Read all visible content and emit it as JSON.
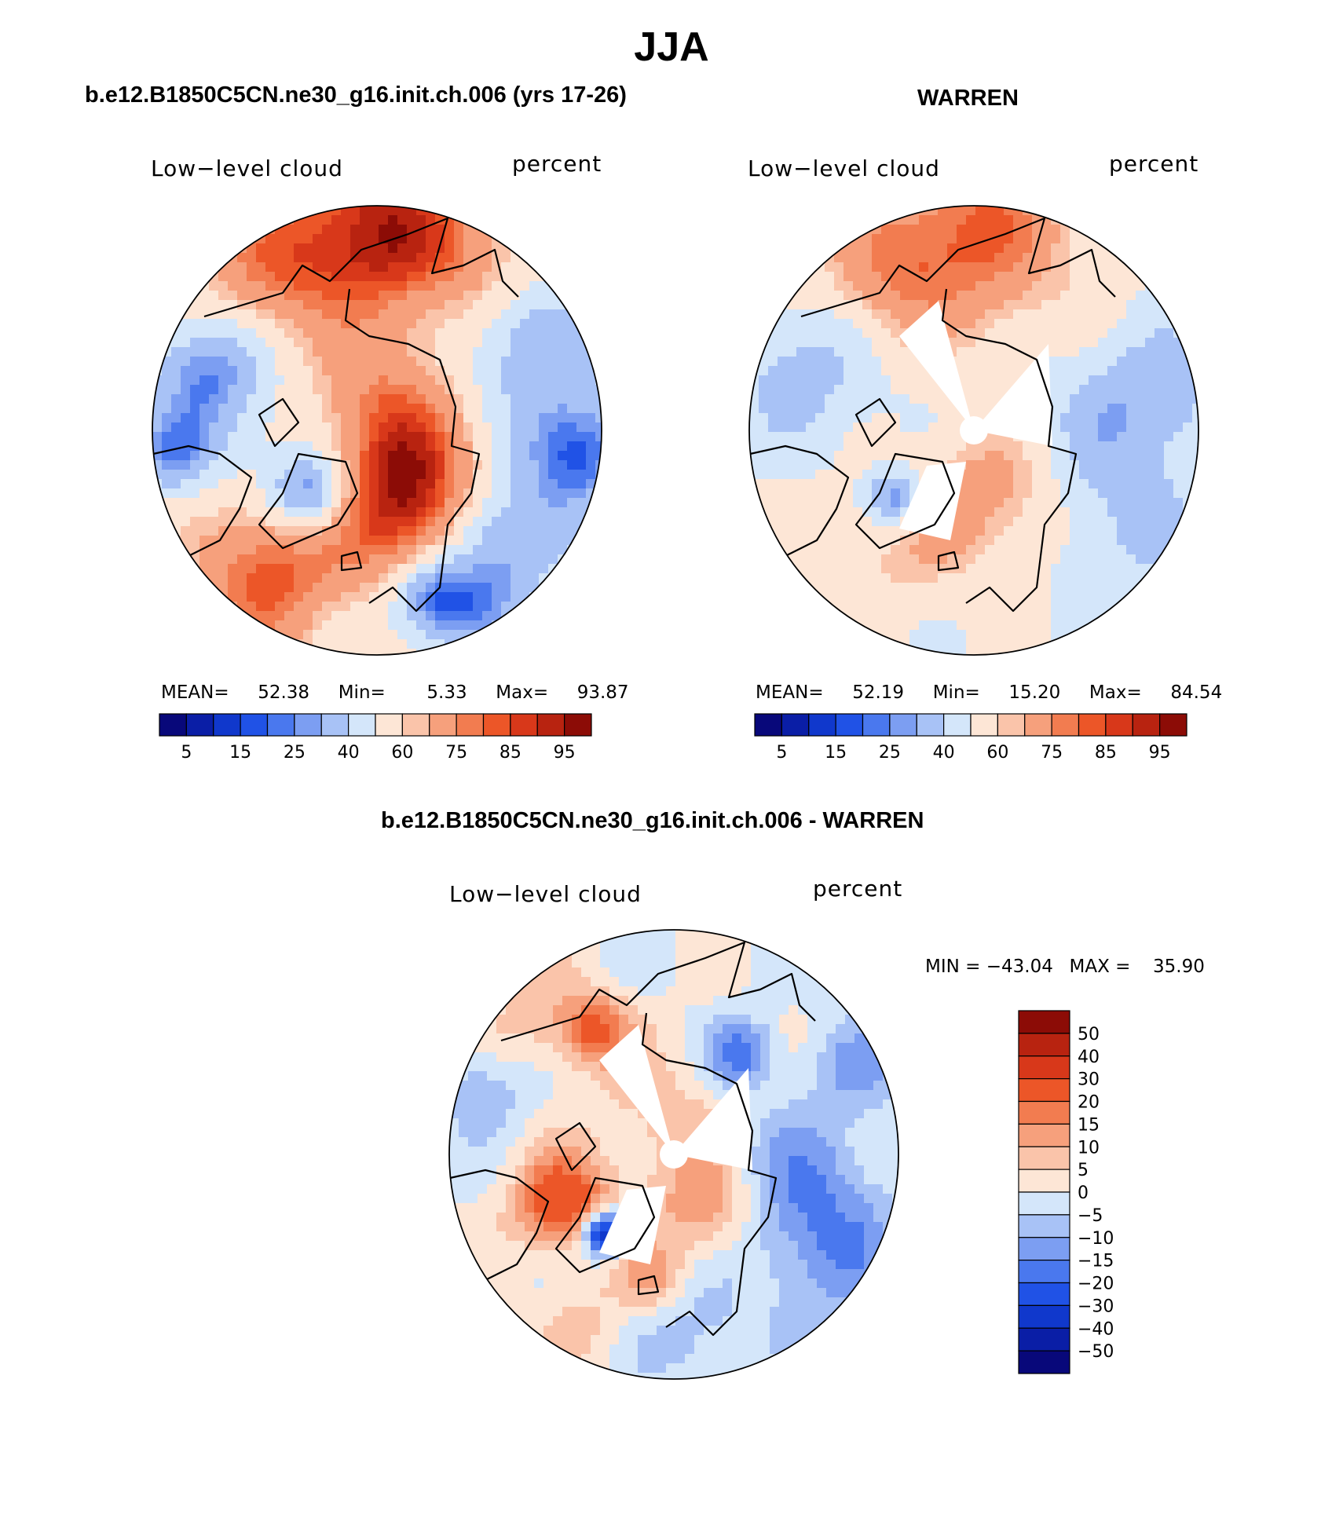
{
  "figure": {
    "title": "JJA",
    "colors": {
      "outline": "#000000",
      "map_border": "#000000"
    }
  },
  "chart_data": [
    {
      "type": "polar-contour-map",
      "panel_title": "b.e12.B1850C5CN.ne30_g16.init.ch.006 (yrs 17-26)",
      "left_label": "Low−level cloud",
      "right_label": "percent",
      "stats": {
        "mean_label": "MEAN=",
        "mean": "52.38",
        "min_label": "Min=",
        "min": "5.33",
        "max_label": "Max=",
        "max": "93.87"
      },
      "colorbar": {
        "tick_labels": [
          "5",
          "15",
          "25",
          "40",
          "60",
          "75",
          "85",
          "95"
        ],
        "colors": [
          "#08087a",
          "#0a1ea6",
          "#1038cc",
          "#2052e6",
          "#4a78ee",
          "#7c9ef2",
          "#a8c2f6",
          "#d4e6fa",
          "#fde6d6",
          "#fac4aa",
          "#f6a07c",
          "#f27c50",
          "#ec5628",
          "#d8381a",
          "#b82310",
          "#8c0c06"
        ]
      },
      "pattern": "model"
    },
    {
      "type": "polar-contour-map",
      "panel_title": "WARREN",
      "left_label": "Low−level cloud",
      "right_label": "percent",
      "stats": {
        "mean_label": "MEAN=",
        "mean": "52.19",
        "min_label": "Min=",
        "min": "15.20",
        "max_label": "Max=",
        "max": "84.54"
      },
      "colorbar": {
        "tick_labels": [
          "5",
          "15",
          "25",
          "40",
          "60",
          "75",
          "85",
          "95"
        ],
        "colors": [
          "#08087a",
          "#0a1ea6",
          "#1038cc",
          "#2052e6",
          "#4a78ee",
          "#7c9ef2",
          "#a8c2f6",
          "#d4e6fa",
          "#fde6d6",
          "#fac4aa",
          "#f6a07c",
          "#f27c50",
          "#ec5628",
          "#d8381a",
          "#b82310",
          "#8c0c06"
        ]
      },
      "pattern": "obs"
    },
    {
      "type": "polar-contour-map",
      "panel_title": "b.e12.B1850C5CN.ne30_g16.init.ch.006 - WARREN",
      "left_label": "Low−level cloud",
      "right_label": "percent",
      "stats_text": {
        "min_label": "MIN =",
        "min": "−43.04",
        "max_label": "MAX =",
        "max": "35.90"
      },
      "colorbar": {
        "orientation": "vertical",
        "tick_labels": [
          "50",
          "40",
          "30",
          "20",
          "15",
          "10",
          "5",
          "0",
          "−5",
          "−10",
          "−15",
          "−20",
          "−30",
          "−40",
          "−50"
        ],
        "colors": [
          "#8c0c06",
          "#b82310",
          "#d8381a",
          "#ec5628",
          "#f27c50",
          "#f6a07c",
          "#fac4aa",
          "#fde6d6",
          "#d4e6fa",
          "#a8c2f6",
          "#7c9ef2",
          "#4a78ee",
          "#2052e6",
          "#1038cc",
          "#0a1ea6",
          "#08087a"
        ]
      },
      "pattern": "diff"
    }
  ]
}
